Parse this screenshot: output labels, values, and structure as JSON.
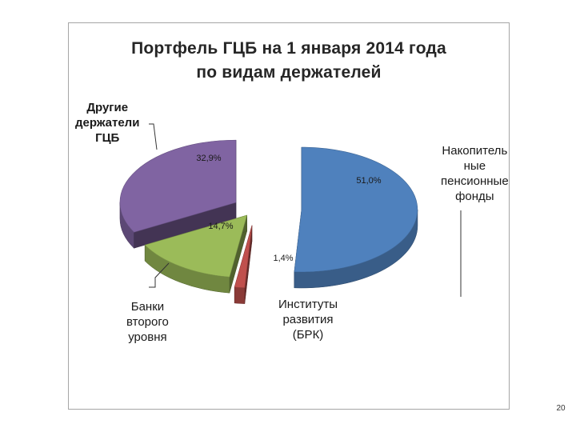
{
  "slide_number": "20",
  "chart_data": {
    "type": "pie",
    "title": "Портфель ГЦБ на 1 января 2014 года",
    "subtitle": "по видам держателей",
    "categories": [
      "Накопитель\nные\nпенсионные\nфонды",
      "Институты\nразвития\n(БРК)",
      "Банки\nвторого\nуровня",
      "Другие\nдержатели\nГЦБ"
    ],
    "values": [
      51.0,
      1.4,
      14.7,
      32.9
    ],
    "data_labels": [
      "51,0%",
      "1,4%",
      "14,7%",
      "32,9%"
    ],
    "colors": [
      "#4f81bd",
      "#c0504d",
      "#9bbb59",
      "#8064a2"
    ],
    "exploded": true,
    "legend": "none"
  }
}
